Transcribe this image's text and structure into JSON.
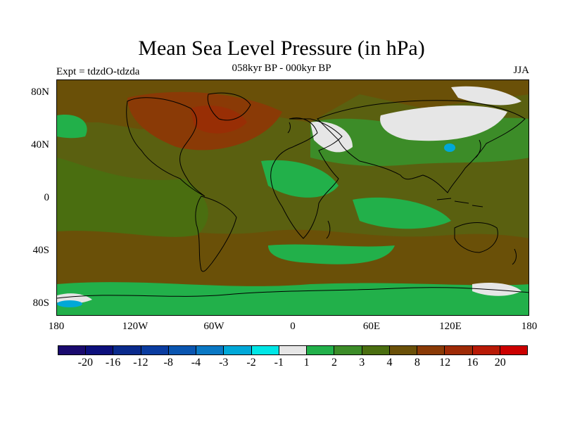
{
  "title": "Mean Sea Level Pressure (in hPa)",
  "subtitle": "058kyr BP - 000kyr BP",
  "left_label": "Expt = tdzdO-tdzda",
  "right_label": "JJA",
  "lat_labels": [
    "80N",
    "40N",
    "0",
    "40S",
    "80S"
  ],
  "lon_labels": [
    "180",
    "120W",
    "60W",
    "0",
    "60E",
    "120E",
    "180"
  ],
  "colorbar": {
    "labels": [
      "-20",
      "-16",
      "-12",
      "-8",
      "-4",
      "-3",
      "-2",
      "-1",
      "1",
      "2",
      "3",
      "4",
      "8",
      "12",
      "16",
      "20"
    ],
    "colors": [
      "#1a0a6e",
      "#0c0f7c",
      "#0a2a8c",
      "#0a3ca0",
      "#0a55b0",
      "#0a78c4",
      "#00a8d8",
      "#00e6e6",
      "#e6e6e6",
      "#22b04a",
      "#3c8c28",
      "#4a6e10",
      "#6a5008",
      "#8a3a06",
      "#9e2a06",
      "#b81a06",
      "#cc0000"
    ]
  },
  "colors": {
    "background_field": "#5a6010",
    "positive_brown": "#7a4a0a",
    "strong_positive": "#8a3a06",
    "light_green": "#22b04a",
    "mid_green": "#3c8c28",
    "near_zero": "#e6e6e6",
    "cyan": "#00a8d8"
  }
}
